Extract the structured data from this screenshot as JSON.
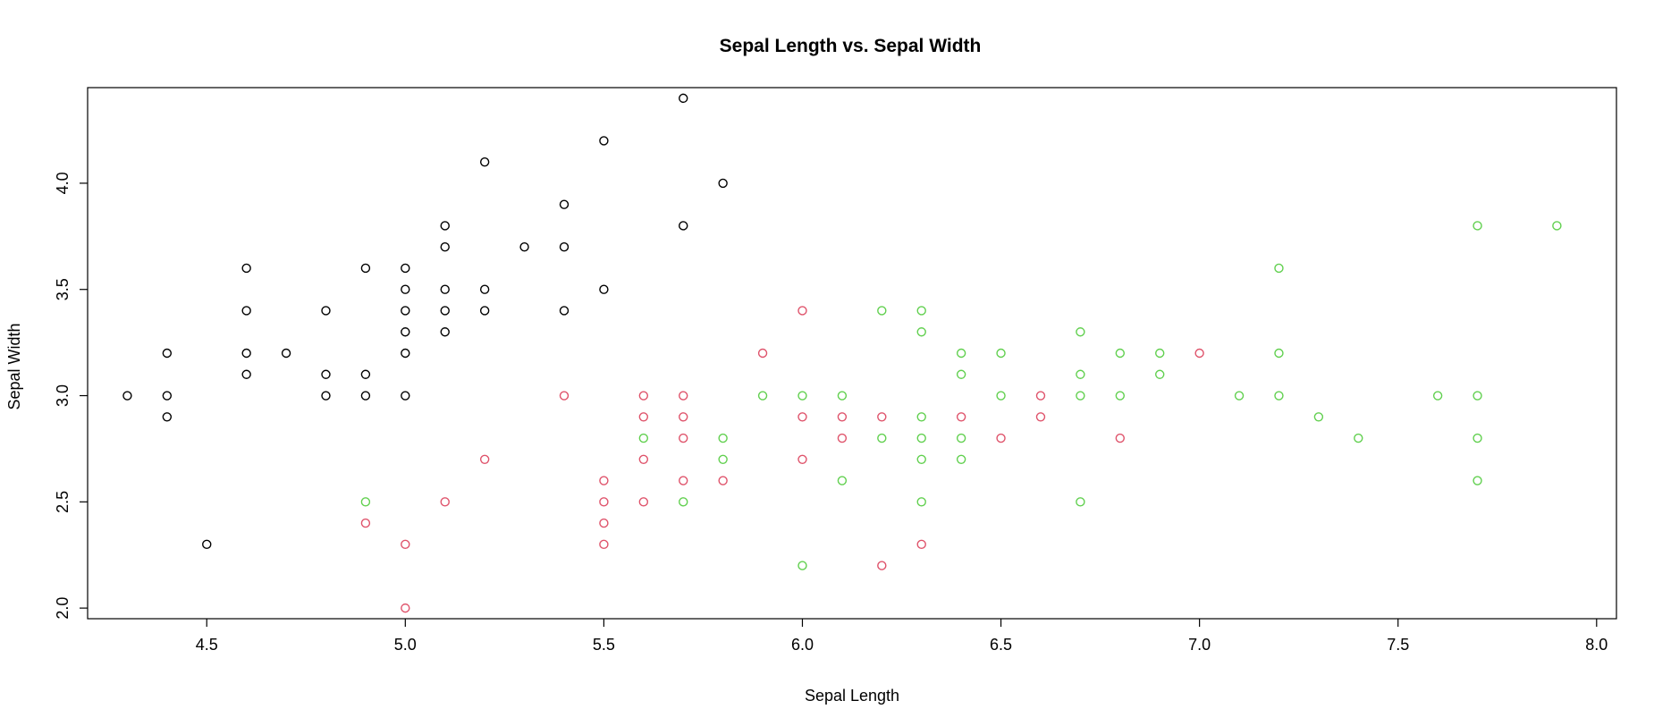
{
  "chart_data": {
    "type": "scatter",
    "title": "Sepal Length vs. Sepal Width",
    "xlabel": "Sepal Length",
    "ylabel": "Sepal Width",
    "xlim": [
      4.2,
      8.05
    ],
    "ylim": [
      1.95,
      4.45
    ],
    "x_ticks": [
      4.5,
      5.0,
      5.5,
      6.0,
      6.5,
      7.0,
      7.5,
      8.0
    ],
    "x_tick_labels": [
      "4.5",
      "5.0",
      "5.5",
      "6.0",
      "6.5",
      "7.0",
      "7.5",
      "8.0"
    ],
    "y_ticks": [
      2.0,
      2.5,
      3.0,
      3.5,
      4.0
    ],
    "y_tick_labels": [
      "2.0",
      "2.5",
      "3.0",
      "3.5",
      "4.0"
    ],
    "grid": false,
    "legend": "none",
    "series": [
      {
        "color": "#000000",
        "points": [
          [
            4.3,
            3.0
          ],
          [
            4.4,
            3.2
          ],
          [
            4.4,
            3.0
          ],
          [
            4.4,
            2.9
          ],
          [
            4.5,
            2.3
          ],
          [
            4.6,
            3.6
          ],
          [
            4.6,
            3.4
          ],
          [
            4.6,
            3.2
          ],
          [
            4.6,
            3.1
          ],
          [
            4.7,
            3.2
          ],
          [
            4.8,
            3.4
          ],
          [
            4.8,
            3.1
          ],
          [
            4.8,
            3.0
          ],
          [
            4.9,
            3.6
          ],
          [
            4.9,
            3.1
          ],
          [
            4.9,
            3.0
          ],
          [
            5.0,
            3.6
          ],
          [
            5.0,
            3.5
          ],
          [
            5.0,
            3.4
          ],
          [
            5.0,
            3.3
          ],
          [
            5.0,
            3.2
          ],
          [
            5.0,
            3.0
          ],
          [
            5.1,
            3.8
          ],
          [
            5.1,
            3.7
          ],
          [
            5.1,
            3.5
          ],
          [
            5.1,
            3.4
          ],
          [
            5.1,
            3.3
          ],
          [
            5.2,
            4.1
          ],
          [
            5.2,
            3.5
          ],
          [
            5.2,
            3.4
          ],
          [
            5.3,
            3.7
          ],
          [
            5.4,
            3.9
          ],
          [
            5.4,
            3.7
          ],
          [
            5.4,
            3.4
          ],
          [
            5.5,
            4.2
          ],
          [
            5.5,
            3.5
          ],
          [
            5.7,
            4.4
          ],
          [
            5.7,
            3.8
          ],
          [
            5.8,
            4.0
          ]
        ]
      },
      {
        "color": "#df536b",
        "points": [
          [
            4.9,
            2.4
          ],
          [
            5.0,
            2.3
          ],
          [
            5.0,
            2.0
          ],
          [
            5.1,
            2.5
          ],
          [
            5.2,
            2.7
          ],
          [
            5.4,
            3.0
          ],
          [
            5.5,
            2.6
          ],
          [
            5.5,
            2.5
          ],
          [
            5.5,
            2.4
          ],
          [
            5.5,
            2.3
          ],
          [
            5.6,
            3.0
          ],
          [
            5.6,
            2.9
          ],
          [
            5.6,
            2.7
          ],
          [
            5.6,
            2.5
          ],
          [
            5.7,
            3.0
          ],
          [
            5.7,
            2.9
          ],
          [
            5.7,
            2.8
          ],
          [
            5.7,
            2.6
          ],
          [
            5.8,
            2.6
          ],
          [
            5.9,
            3.2
          ],
          [
            6.0,
            3.4
          ],
          [
            6.0,
            2.9
          ],
          [
            6.0,
            2.7
          ],
          [
            6.1,
            2.9
          ],
          [
            6.1,
            2.8
          ],
          [
            6.2,
            2.9
          ],
          [
            6.2,
            2.2
          ],
          [
            6.3,
            2.3
          ],
          [
            6.4,
            2.9
          ],
          [
            6.5,
            2.8
          ],
          [
            6.6,
            3.0
          ],
          [
            6.6,
            2.9
          ],
          [
            6.8,
            2.8
          ],
          [
            7.0,
            3.2
          ]
        ]
      },
      {
        "color": "#61d04f",
        "points": [
          [
            4.9,
            2.5
          ],
          [
            5.6,
            2.8
          ],
          [
            5.7,
            2.5
          ],
          [
            5.8,
            2.8
          ],
          [
            5.8,
            2.7
          ],
          [
            5.9,
            3.0
          ],
          [
            6.0,
            3.0
          ],
          [
            6.0,
            2.2
          ],
          [
            6.1,
            3.0
          ],
          [
            6.1,
            2.6
          ],
          [
            6.2,
            3.4
          ],
          [
            6.2,
            2.8
          ],
          [
            6.3,
            3.4
          ],
          [
            6.3,
            3.3
          ],
          [
            6.3,
            2.9
          ],
          [
            6.3,
            2.8
          ],
          [
            6.3,
            2.7
          ],
          [
            6.3,
            2.5
          ],
          [
            6.4,
            3.2
          ],
          [
            6.4,
            3.1
          ],
          [
            6.4,
            2.8
          ],
          [
            6.4,
            2.7
          ],
          [
            6.5,
            3.2
          ],
          [
            6.5,
            3.0
          ],
          [
            6.7,
            3.3
          ],
          [
            6.7,
            3.1
          ],
          [
            6.7,
            3.0
          ],
          [
            6.7,
            2.5
          ],
          [
            6.8,
            3.2
          ],
          [
            6.8,
            3.0
          ],
          [
            6.9,
            3.2
          ],
          [
            6.9,
            3.1
          ],
          [
            7.1,
            3.0
          ],
          [
            7.2,
            3.6
          ],
          [
            7.2,
            3.2
          ],
          [
            7.2,
            3.0
          ],
          [
            7.3,
            2.9
          ],
          [
            7.4,
            2.8
          ],
          [
            7.6,
            3.0
          ],
          [
            7.7,
            3.8
          ],
          [
            7.7,
            3.0
          ],
          [
            7.7,
            2.8
          ],
          [
            7.7,
            2.6
          ],
          [
            7.9,
            3.8
          ]
        ]
      }
    ]
  }
}
